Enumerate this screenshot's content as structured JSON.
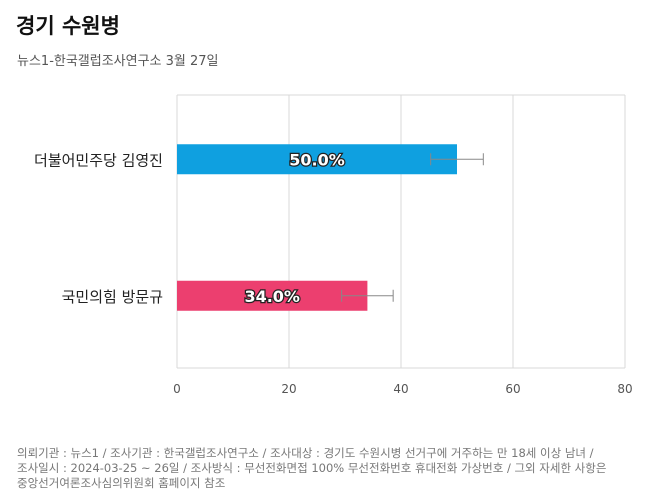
{
  "header": {
    "title": "경기 수원병",
    "subtitle": "뉴스1-한국갤럽조사연구소 3월 27일"
  },
  "footer": {
    "line1": "의뢰기관 : 뉴스1 / 조사기관 : 한국갤럽조사연구소 / 조사대상 : 경기도 수원시병 선거구에 거주하는 만 18세 이상 남녀 /",
    "line2": "조사일시 : 2024-03-25 ~ 26일 / 조사방식 : 무선전화면접 100% 무선전화번호 휴대전화 가상번호 / 그외 자세한 사항은",
    "line3": "중앙선거여론조사심의위원회 홈페이지 참조"
  },
  "chart_data": {
    "type": "bar",
    "orientation": "horizontal",
    "categories": [
      "더불어민주당 김영진",
      "국민의힘 방문규"
    ],
    "values": [
      50.0,
      34.0
    ],
    "value_labels": [
      "50.0%",
      "34.0%"
    ],
    "error_margin": [
      4.7,
      4.6
    ],
    "colors": [
      "#0fa0e0",
      "#ec3f6f"
    ],
    "xlim": [
      0,
      80
    ],
    "xticks": [
      0,
      20,
      40,
      60,
      80
    ],
    "grid": true
  }
}
